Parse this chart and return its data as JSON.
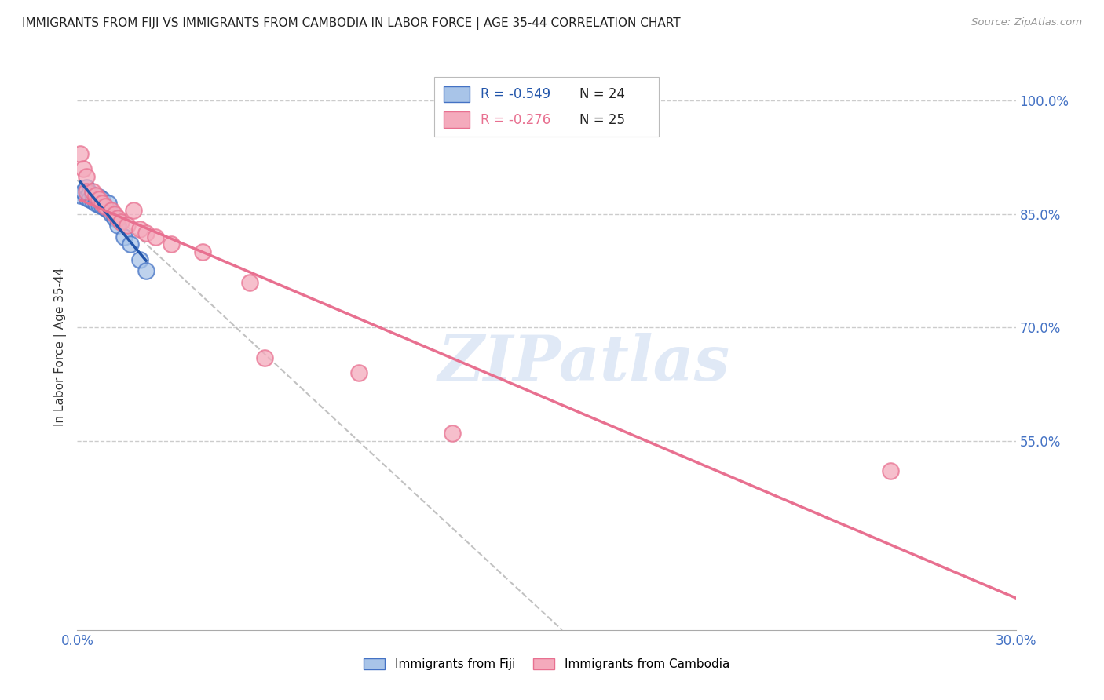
{
  "title": "IMMIGRANTS FROM FIJI VS IMMIGRANTS FROM CAMBODIA IN LABOR FORCE | AGE 35-44 CORRELATION CHART",
  "source": "Source: ZipAtlas.com",
  "ylabel": "In Labor Force | Age 35-44",
  "xlim": [
    0.0,
    0.3
  ],
  "ylim": [
    0.3,
    1.05
  ],
  "xticks": [
    0.0,
    0.05,
    0.1,
    0.15,
    0.2,
    0.25,
    0.3
  ],
  "xticklabels": [
    "0.0%",
    "",
    "",
    "",
    "",
    "",
    "30.0%"
  ],
  "yticks_right": [
    1.0,
    0.85,
    0.7,
    0.55
  ],
  "ytick_right_labels": [
    "100.0%",
    "85.0%",
    "70.0%",
    "55.0%"
  ],
  "right_axis_color": "#4472c4",
  "bottom_axis_color": "#4472c4",
  "fiji_color": "#a8c4e8",
  "fiji_edge_color": "#4472c4",
  "fiji_line_color": "#2255aa",
  "cambodia_color": "#f4aabc",
  "cambodia_edge_color": "#e87090",
  "cambodia_line_color": "#e87090",
  "fiji_R": -0.549,
  "fiji_N": 24,
  "cambodia_R": -0.276,
  "cambodia_N": 25,
  "legend_R_fiji": "R = -0.549",
  "legend_N_fiji": "N = 24",
  "legend_R_cambodia": "R = -0.276",
  "legend_N_cambodia": "N = 25",
  "fiji_scatter_x": [
    0.001,
    0.002,
    0.003,
    0.003,
    0.004,
    0.004,
    0.005,
    0.005,
    0.006,
    0.006,
    0.007,
    0.007,
    0.008,
    0.008,
    0.009,
    0.01,
    0.01,
    0.011,
    0.012,
    0.013,
    0.015,
    0.017,
    0.02,
    0.022
  ],
  "fiji_scatter_y": [
    0.875,
    0.88,
    0.885,
    0.872,
    0.878,
    0.87,
    0.876,
    0.868,
    0.874,
    0.865,
    0.873,
    0.862,
    0.87,
    0.86,
    0.858,
    0.855,
    0.865,
    0.85,
    0.845,
    0.835,
    0.82,
    0.81,
    0.79,
    0.775
  ],
  "cambodia_scatter_x": [
    0.001,
    0.002,
    0.003,
    0.003,
    0.005,
    0.006,
    0.007,
    0.008,
    0.009,
    0.011,
    0.012,
    0.013,
    0.014,
    0.016,
    0.018,
    0.02,
    0.022,
    0.025,
    0.03,
    0.04,
    0.055,
    0.06,
    0.09,
    0.12,
    0.26
  ],
  "cambodia_scatter_y": [
    0.93,
    0.91,
    0.9,
    0.88,
    0.88,
    0.875,
    0.87,
    0.865,
    0.86,
    0.855,
    0.85,
    0.845,
    0.84,
    0.835,
    0.855,
    0.83,
    0.825,
    0.82,
    0.81,
    0.8,
    0.76,
    0.66,
    0.64,
    0.56,
    0.51
  ],
  "ref_line_x": [
    0.0,
    0.155
  ],
  "ref_line_y": [
    0.895,
    0.3
  ],
  "watermark_text": "ZIPatlas",
  "watermark_color": "#c8d8f0",
  "background_color": "#ffffff",
  "grid_color": "#cccccc",
  "title_fontsize": 11,
  "legend_fontsize": 12
}
